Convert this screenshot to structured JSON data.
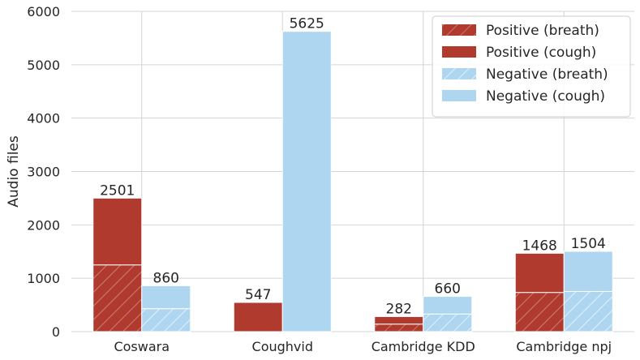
{
  "chart_data": {
    "type": "bar",
    "stacked_within_bar": true,
    "categories": [
      "Coswara",
      "Coughvid",
      "Cambridge KDD",
      "Cambridge npj"
    ],
    "series": [
      {
        "name": "Positive (breath)",
        "group": "Positive",
        "pattern": "hatched",
        "color": "#b03a2e",
        "values": [
          1250,
          0,
          141,
          734
        ]
      },
      {
        "name": "Positive (cough)",
        "group": "Positive",
        "pattern": "solid",
        "color": "#b03a2e",
        "values": [
          1251,
          547,
          141,
          734
        ]
      },
      {
        "name": "Negative (breath)",
        "group": "Negative",
        "pattern": "hatched",
        "color": "#aed6f1",
        "values": [
          430,
          0,
          330,
          752
        ]
      },
      {
        "name": "Negative (cough)",
        "group": "Negative",
        "pattern": "solid",
        "color": "#aed6f1",
        "values": [
          430,
          5625,
          330,
          752
        ]
      }
    ],
    "totals": {
      "Positive": [
        2501,
        547,
        282,
        1468
      ],
      "Negative": [
        860,
        5625,
        660,
        1504
      ]
    },
    "total_labels": {
      "Positive": [
        "2501",
        "547",
        "282",
        "1468"
      ],
      "Negative": [
        "860",
        "5625",
        "660",
        "1504"
      ]
    },
    "xlabel": "",
    "ylabel": "Audio files",
    "ylim": [
      0,
      6000
    ],
    "yticks": [
      0,
      1000,
      2000,
      3000,
      4000,
      5000,
      6000
    ],
    "ytick_labels": [
      "0",
      "1000",
      "2000",
      "3000",
      "4000",
      "5000",
      "6000"
    ],
    "grid": true,
    "legend_position": "top-right"
  }
}
